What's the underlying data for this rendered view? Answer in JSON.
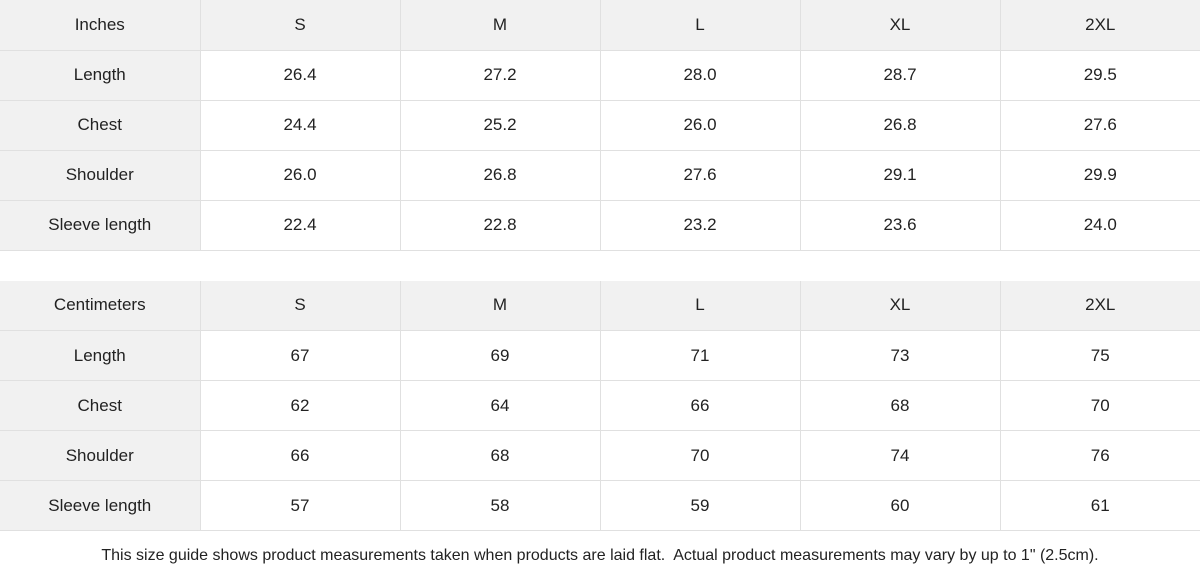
{
  "chart_data": [
    {
      "type": "table",
      "title": "Inches",
      "columns": [
        "Inches",
        "S",
        "M",
        "L",
        "XL",
        "2XL"
      ],
      "rows": [
        [
          "Length",
          "26.4",
          "27.2",
          "28.0",
          "28.7",
          "29.5"
        ],
        [
          "Chest",
          "24.4",
          "25.2",
          "26.0",
          "26.8",
          "27.6"
        ],
        [
          "Shoulder",
          "26.0",
          "26.8",
          "27.6",
          "29.1",
          "29.9"
        ],
        [
          "Sleeve length",
          "22.4",
          "22.8",
          "23.2",
          "23.6",
          "24.0"
        ]
      ]
    },
    {
      "type": "table",
      "title": "Centimeters",
      "columns": [
        "Centimeters",
        "S",
        "M",
        "L",
        "XL",
        "2XL"
      ],
      "rows": [
        [
          "Length",
          "67",
          "69",
          "71",
          "73",
          "75"
        ],
        [
          "Chest",
          "62",
          "64",
          "66",
          "68",
          "70"
        ],
        [
          "Shoulder",
          "66",
          "68",
          "70",
          "74",
          "76"
        ],
        [
          "Sleeve length",
          "57",
          "58",
          "59",
          "60",
          "61"
        ]
      ]
    }
  ],
  "footer": {
    "note": "This size guide shows product measurements taken when products are laid flat.  Actual product measurements may vary by up to 1\" (2.5cm)."
  },
  "colors": {
    "header_bg": "#f1f1f1",
    "border": "#e0e0e0",
    "text": "#222222"
  }
}
